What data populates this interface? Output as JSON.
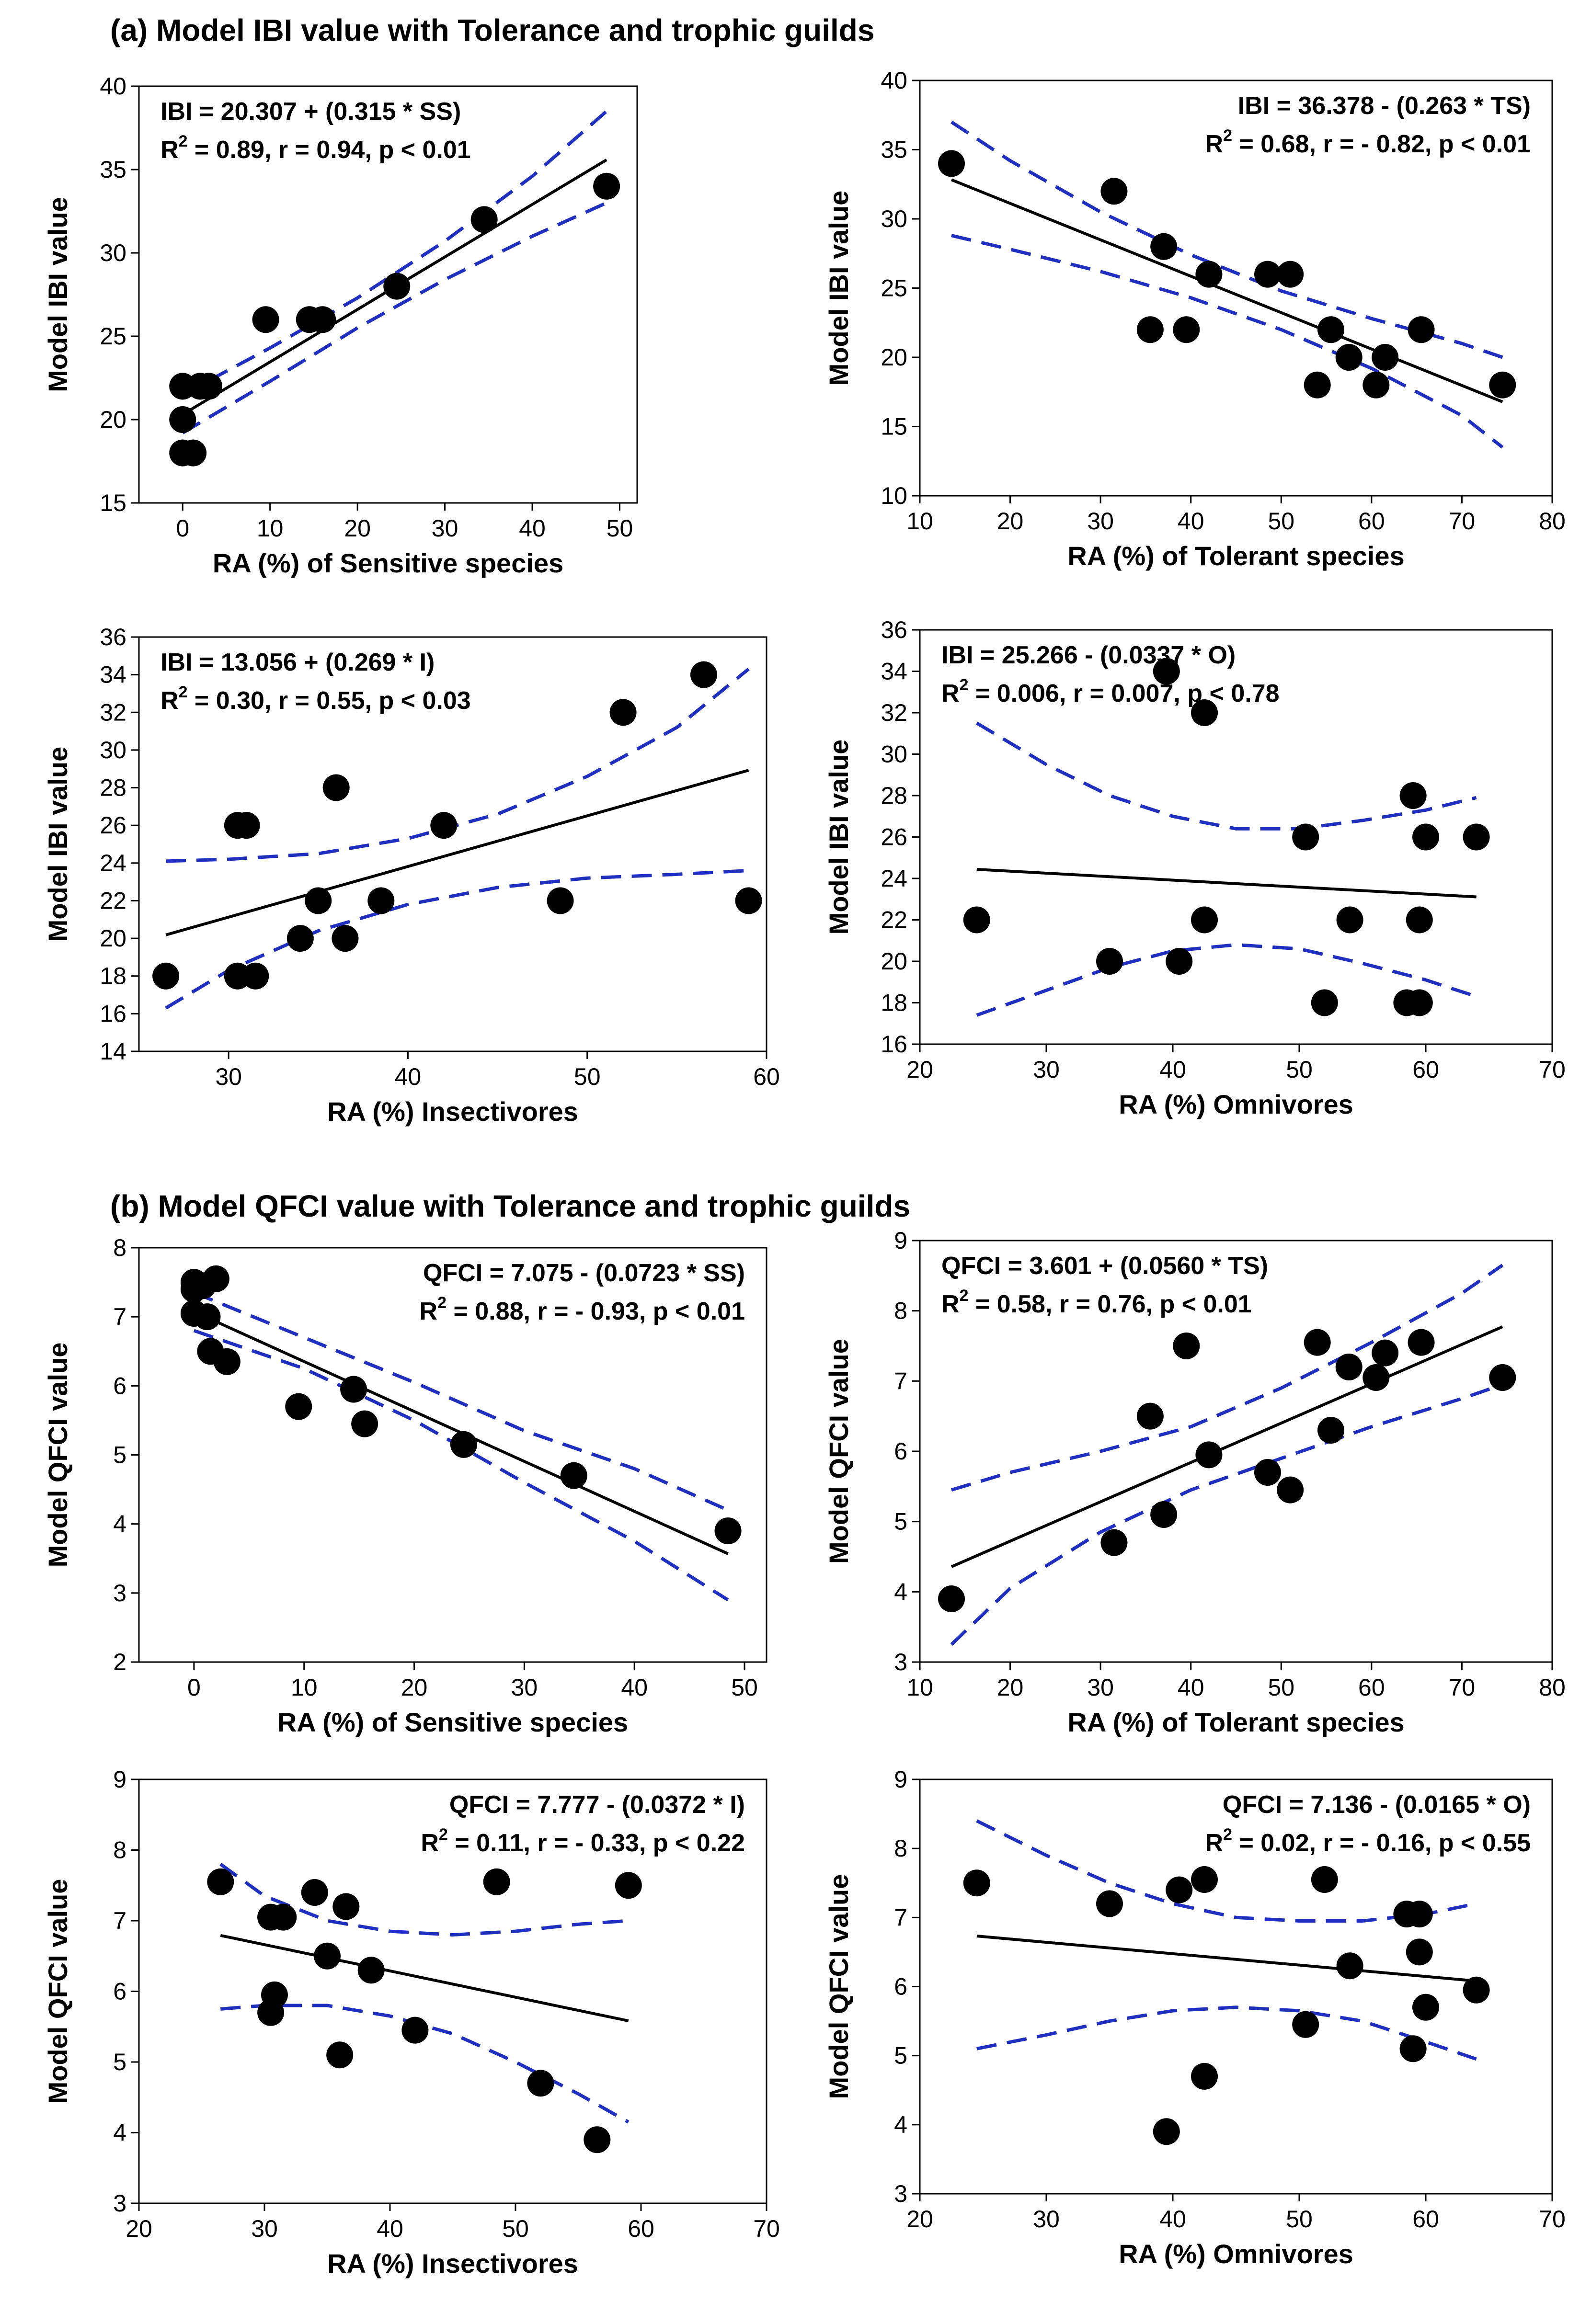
{
  "sections": [
    {
      "label": "(a) Model IBI value with Tolerance and trophic guilds"
    },
    {
      "label": "(b) Model QFCI value with Tolerance and trophic guilds"
    }
  ],
  "chart_data": [
    {
      "type": "scatter",
      "section": "a",
      "xlabel": "RA (%) of Sensitive species",
      "ylabel": "Model IBI value",
      "xlim": [
        -5,
        52
      ],
      "ylim": [
        15,
        40
      ],
      "xticks": [
        0,
        10,
        20,
        30,
        40,
        50
      ],
      "yticks": [
        15,
        20,
        25,
        30,
        35,
        40
      ],
      "annotations": [
        "IBI = 20.307 + (0.315 * SS)",
        "R",
        "2",
        " = 0.89, r = 0.94, p < 0.01"
      ],
      "annotation_placement": "top-left",
      "points": [
        [
          0,
          22
        ],
        [
          0,
          20
        ],
        [
          0,
          18
        ],
        [
          1.2,
          18
        ],
        [
          2,
          22
        ],
        [
          3,
          22
        ],
        [
          9.5,
          26
        ],
        [
          14.5,
          26
        ],
        [
          16,
          26
        ],
        [
          24.5,
          28
        ],
        [
          34.5,
          32
        ],
        [
          48.5,
          34
        ]
      ],
      "fit": {
        "intercept": 20.307,
        "slope": 0.315,
        "x_range": [
          0,
          48.5
        ]
      },
      "ci_upper": [
        [
          0,
          21.5
        ],
        [
          10,
          24.3
        ],
        [
          20,
          27.3
        ],
        [
          30,
          30.7
        ],
        [
          40,
          34.6
        ],
        [
          48.5,
          38.5
        ]
      ],
      "ci_lower": [
        [
          0,
          19.2
        ],
        [
          10,
          22.3
        ],
        [
          20,
          25.5
        ],
        [
          30,
          28.4
        ],
        [
          40,
          31.0
        ],
        [
          48.5,
          33.0
        ]
      ]
    },
    {
      "type": "scatter",
      "section": "a",
      "xlabel": "RA (%) of Tolerant species",
      "ylabel": "Model IBI value",
      "xlim": [
        10,
        80
      ],
      "ylim": [
        10,
        40
      ],
      "xticks": [
        10,
        20,
        30,
        40,
        50,
        60,
        70,
        80
      ],
      "yticks": [
        10,
        15,
        20,
        25,
        30,
        35,
        40
      ],
      "annotations": [
        "IBI = 36.378 - (0.263 * TS)",
        "R",
        "2",
        " = 0.68, r  = - 0.82, p < 0.01"
      ],
      "annotation_placement": "top-right",
      "points": [
        [
          13.5,
          34
        ],
        [
          31.5,
          32
        ],
        [
          35.5,
          22
        ],
        [
          37,
          28
        ],
        [
          39.5,
          22
        ],
        [
          42,
          26
        ],
        [
          48.5,
          26
        ],
        [
          51,
          26
        ],
        [
          54,
          18
        ],
        [
          55.5,
          22
        ],
        [
          57.5,
          20
        ],
        [
          60.5,
          18
        ],
        [
          61.5,
          20
        ],
        [
          65.5,
          22
        ],
        [
          74.5,
          18
        ]
      ],
      "fit": {
        "intercept": 36.378,
        "slope": -0.263,
        "x_range": [
          13.5,
          74.5
        ]
      },
      "ci_upper": [
        [
          13.5,
          37
        ],
        [
          20,
          34.2
        ],
        [
          30,
          30.5
        ],
        [
          40,
          27.4
        ],
        [
          50,
          24.8
        ],
        [
          60,
          22.8
        ],
        [
          70,
          21
        ],
        [
          74.5,
          20
        ]
      ],
      "ci_lower": [
        [
          13.5,
          28.8
        ],
        [
          20,
          27.8
        ],
        [
          30,
          26.2
        ],
        [
          40,
          24.3
        ],
        [
          50,
          22
        ],
        [
          60,
          19.2
        ],
        [
          70,
          15.8
        ],
        [
          74.5,
          13.5
        ]
      ]
    },
    {
      "type": "scatter",
      "section": "a",
      "xlabel": "RA (%) Insectivores",
      "ylabel": "Model IBI value",
      "xlim": [
        25,
        60
      ],
      "ylim": [
        14,
        36
      ],
      "xticks": [
        30,
        40,
        50,
        60
      ],
      "yticks": [
        14,
        16,
        18,
        20,
        22,
        24,
        26,
        28,
        30,
        32,
        34,
        36
      ],
      "annotations": [
        "IBI = 13.056 + (0.269 * I)",
        "R",
        "2",
        " = 0.30, r = 0.55, p < 0.03"
      ],
      "annotation_placement": "top-left",
      "points": [
        [
          26.5,
          18
        ],
        [
          30.5,
          26
        ],
        [
          31,
          26
        ],
        [
          30.5,
          18
        ],
        [
          31.5,
          18
        ],
        [
          34,
          20
        ],
        [
          35,
          22
        ],
        [
          36,
          28
        ],
        [
          36.5,
          20
        ],
        [
          38.5,
          22
        ],
        [
          42,
          26
        ],
        [
          48.5,
          22
        ],
        [
          52,
          32
        ],
        [
          56.5,
          34
        ],
        [
          59,
          22
        ]
      ],
      "fit": {
        "intercept": 13.056,
        "slope": 0.269,
        "x_range": [
          26.5,
          59
        ]
      },
      "ci_upper": [
        [
          26.5,
          24.1
        ],
        [
          30,
          24.2
        ],
        [
          35,
          24.5
        ],
        [
          40,
          25.3
        ],
        [
          45,
          26.6
        ],
        [
          50,
          28.6
        ],
        [
          55,
          31.2
        ],
        [
          59,
          34.3
        ]
      ],
      "ci_lower": [
        [
          26.5,
          16.3
        ],
        [
          30,
          18.3
        ],
        [
          35,
          20.4
        ],
        [
          40,
          21.8
        ],
        [
          45,
          22.7
        ],
        [
          50,
          23.2
        ],
        [
          55,
          23.4
        ],
        [
          59,
          23.6
        ]
      ]
    },
    {
      "type": "scatter",
      "section": "a",
      "xlabel": "RA (%) Omnivores",
      "ylabel": "Model IBI value",
      "xlim": [
        20,
        70
      ],
      "ylim": [
        16,
        36
      ],
      "xticks": [
        20,
        30,
        40,
        50,
        60,
        70
      ],
      "yticks": [
        16,
        18,
        20,
        22,
        24,
        26,
        28,
        30,
        32,
        34,
        36
      ],
      "annotations": [
        "IBI = 25.266 - (0.0337 * O)",
        "R",
        "2",
        " = 0.006, r = 0.007, p < 0.78"
      ],
      "annotation_placement": "top-left",
      "points": [
        [
          24.5,
          22
        ],
        [
          35,
          20
        ],
        [
          39.5,
          34
        ],
        [
          40.5,
          20
        ],
        [
          42.5,
          32
        ],
        [
          42.5,
          22
        ],
        [
          50.5,
          26
        ],
        [
          52,
          18
        ],
        [
          54,
          22
        ],
        [
          58.5,
          18
        ],
        [
          59,
          28
        ],
        [
          59.5,
          22
        ],
        [
          59.5,
          18
        ],
        [
          60,
          26
        ],
        [
          64,
          26
        ]
      ],
      "fit": {
        "intercept": 25.266,
        "slope": -0.0337,
        "x_range": [
          24.5,
          64
        ]
      },
      "ci_upper": [
        [
          24.5,
          31.5
        ],
        [
          30,
          29.5
        ],
        [
          35,
          28
        ],
        [
          40,
          27
        ],
        [
          45,
          26.4
        ],
        [
          50,
          26.4
        ],
        [
          55,
          26.8
        ],
        [
          60,
          27.3
        ],
        [
          64,
          27.9
        ]
      ],
      "ci_lower": [
        [
          24.5,
          17.4
        ],
        [
          30,
          18.6
        ],
        [
          35,
          19.7
        ],
        [
          40,
          20.5
        ],
        [
          45,
          20.8
        ],
        [
          50,
          20.6
        ],
        [
          55,
          19.9
        ],
        [
          60,
          19.1
        ],
        [
          64,
          18.3
        ]
      ]
    },
    {
      "type": "scatter",
      "section": "b",
      "xlabel": "RA (%) of Sensitive species",
      "ylabel": "Model QFCI value",
      "xlim": [
        -5,
        52
      ],
      "ylim": [
        2,
        8
      ],
      "xticks": [
        0,
        10,
        20,
        30,
        40,
        50
      ],
      "yticks": [
        2,
        3,
        4,
        5,
        6,
        7,
        8
      ],
      "annotations": [
        "QFCI = 7.075 - (0.0723 * SS)",
        "R",
        "2",
        " = 0.88, r  = - 0.93, p < 0.01"
      ],
      "annotation_placement": "top-right",
      "points": [
        [
          0,
          7.5
        ],
        [
          0,
          7.4
        ],
        [
          0,
          7.05
        ],
        [
          0.8,
          7.45
        ],
        [
          1.2,
          7.0
        ],
        [
          1.5,
          6.5
        ],
        [
          2,
          7.55
        ],
        [
          3,
          6.35
        ],
        [
          9.5,
          5.7
        ],
        [
          14.5,
          5.95
        ],
        [
          15.5,
          5.45
        ],
        [
          24.5,
          5.15
        ],
        [
          34.5,
          4.7
        ],
        [
          48.5,
          3.9
        ]
      ],
      "fit": {
        "intercept": 7.075,
        "slope": -0.0723,
        "x_range": [
          0,
          48.5
        ]
      },
      "ci_upper": [
        [
          0,
          7.35
        ],
        [
          10,
          6.7
        ],
        [
          20,
          6.05
        ],
        [
          30,
          5.35
        ],
        [
          40,
          4.8
        ],
        [
          48.5,
          4.2
        ]
      ],
      "ci_lower": [
        [
          0,
          6.8
        ],
        [
          10,
          6.25
        ],
        [
          20,
          5.5
        ],
        [
          30,
          4.6
        ],
        [
          40,
          3.75
        ],
        [
          48.5,
          2.9
        ]
      ]
    },
    {
      "type": "scatter",
      "section": "b",
      "xlabel": "RA (%) of Tolerant species",
      "ylabel": "Model QFCI value",
      "xlim": [
        10,
        80
      ],
      "ylim": [
        3,
        9
      ],
      "xticks": [
        10,
        20,
        30,
        40,
        50,
        60,
        70,
        80
      ],
      "yticks": [
        3,
        4,
        5,
        6,
        7,
        8,
        9
      ],
      "annotations": [
        "QFCI = 3.601 + (0.0560 * TS)",
        "R",
        "2",
        " = 0.58, r = 0.76, p < 0.01"
      ],
      "annotation_placement": "top-left",
      "points": [
        [
          13.5,
          3.9
        ],
        [
          31.5,
          4.7
        ],
        [
          35.5,
          6.5
        ],
        [
          37,
          5.1
        ],
        [
          39.5,
          7.5
        ],
        [
          42,
          5.95
        ],
        [
          48.5,
          5.7
        ],
        [
          51,
          5.45
        ],
        [
          54,
          7.55
        ],
        [
          55.5,
          6.3
        ],
        [
          57.5,
          7.2
        ],
        [
          60.5,
          7.05
        ],
        [
          61.5,
          7.4
        ],
        [
          65.5,
          7.55
        ],
        [
          74.5,
          7.05
        ]
      ],
      "fit": {
        "intercept": 3.601,
        "slope": 0.056,
        "x_range": [
          13.5,
          74.5
        ]
      },
      "ci_upper": [
        [
          13.5,
          5.45
        ],
        [
          20,
          5.7
        ],
        [
          30,
          6.0
        ],
        [
          40,
          6.35
        ],
        [
          50,
          6.9
        ],
        [
          60,
          7.55
        ],
        [
          70,
          8.25
        ],
        [
          74.5,
          8.65
        ]
      ],
      "ci_lower": [
        [
          13.5,
          3.25
        ],
        [
          20,
          4.05
        ],
        [
          30,
          4.85
        ],
        [
          40,
          5.45
        ],
        [
          50,
          5.9
        ],
        [
          60,
          6.35
        ],
        [
          70,
          6.75
        ],
        [
          74.5,
          6.95
        ]
      ]
    },
    {
      "type": "scatter",
      "section": "b",
      "xlabel": "RA (%) Insectivores",
      "ylabel": "Model QFCI value",
      "xlim": [
        20,
        70
      ],
      "ylim": [
        3,
        9
      ],
      "xticks": [
        20,
        30,
        40,
        50,
        60,
        70
      ],
      "yticks": [
        3,
        4,
        5,
        6,
        7,
        8,
        9
      ],
      "annotations": [
        "QFCI = 7.777 - (0.0372 * I)",
        "R",
        "2",
        " = 0.11, r = - 0.33, p < 0.22"
      ],
      "annotation_placement": "top-right",
      "points": [
        [
          26.5,
          7.55
        ],
        [
          30.5,
          7.05
        ],
        [
          30.5,
          5.7
        ],
        [
          30.8,
          5.95
        ],
        [
          31.5,
          7.05
        ],
        [
          34,
          7.4
        ],
        [
          35,
          6.5
        ],
        [
          36,
          5.1
        ],
        [
          36.5,
          7.2
        ],
        [
          38.5,
          6.3
        ],
        [
          42,
          5.45
        ],
        [
          48.5,
          7.55
        ],
        [
          52,
          4.7
        ],
        [
          56.5,
          3.9
        ],
        [
          59,
          7.5
        ]
      ],
      "fit": {
        "intercept": 7.777,
        "slope": -0.0372,
        "x_range": [
          26.5,
          59
        ]
      },
      "ci_upper": [
        [
          26.5,
          7.8
        ],
        [
          30,
          7.35
        ],
        [
          35,
          7.0
        ],
        [
          40,
          6.85
        ],
        [
          45,
          6.8
        ],
        [
          50,
          6.85
        ],
        [
          55,
          6.95
        ],
        [
          59,
          7.0
        ]
      ],
      "ci_lower": [
        [
          26.5,
          5.75
        ],
        [
          30,
          5.8
        ],
        [
          35,
          5.8
        ],
        [
          40,
          5.65
        ],
        [
          45,
          5.4
        ],
        [
          50,
          5.0
        ],
        [
          55,
          4.55
        ],
        [
          59,
          4.15
        ]
      ]
    },
    {
      "type": "scatter",
      "section": "b",
      "xlabel": "RA (%) Omnivores",
      "ylabel": "Model QFCI value",
      "xlim": [
        20,
        70
      ],
      "ylim": [
        3,
        9
      ],
      "xticks": [
        20,
        30,
        40,
        50,
        60,
        70
      ],
      "yticks": [
        3,
        4,
        5,
        6,
        7,
        8,
        9
      ],
      "annotations": [
        "QFCI = 7.136 - (0.0165 * O)",
        "R",
        "2",
        " = 0.02, r  = - 0.16, p < 0.55"
      ],
      "annotation_placement": "top-right",
      "points": [
        [
          24.5,
          7.5
        ],
        [
          35,
          7.2
        ],
        [
          39.5,
          3.9
        ],
        [
          40.5,
          7.4
        ],
        [
          42.5,
          7.55
        ],
        [
          42.5,
          4.7
        ],
        [
          50.5,
          5.45
        ],
        [
          52,
          7.55
        ],
        [
          54,
          6.3
        ],
        [
          58.5,
          7.05
        ],
        [
          59,
          5.1
        ],
        [
          59.5,
          7.05
        ],
        [
          59.5,
          6.5
        ],
        [
          60,
          5.7
        ],
        [
          64,
          5.95
        ]
      ],
      "fit": {
        "intercept": 7.136,
        "slope": -0.0165,
        "x_range": [
          24.5,
          64
        ]
      },
      "ci_upper": [
        [
          24.5,
          8.4
        ],
        [
          30,
          7.9
        ],
        [
          35,
          7.5
        ],
        [
          40,
          7.2
        ],
        [
          45,
          7.0
        ],
        [
          50,
          6.95
        ],
        [
          55,
          6.95
        ],
        [
          60,
          7.05
        ],
        [
          64,
          7.2
        ]
      ],
      "ci_lower": [
        [
          24.5,
          5.1
        ],
        [
          30,
          5.3
        ],
        [
          35,
          5.5
        ],
        [
          40,
          5.65
        ],
        [
          45,
          5.7
        ],
        [
          50,
          5.65
        ],
        [
          55,
          5.5
        ],
        [
          60,
          5.2
        ],
        [
          64,
          4.95
        ]
      ]
    }
  ]
}
